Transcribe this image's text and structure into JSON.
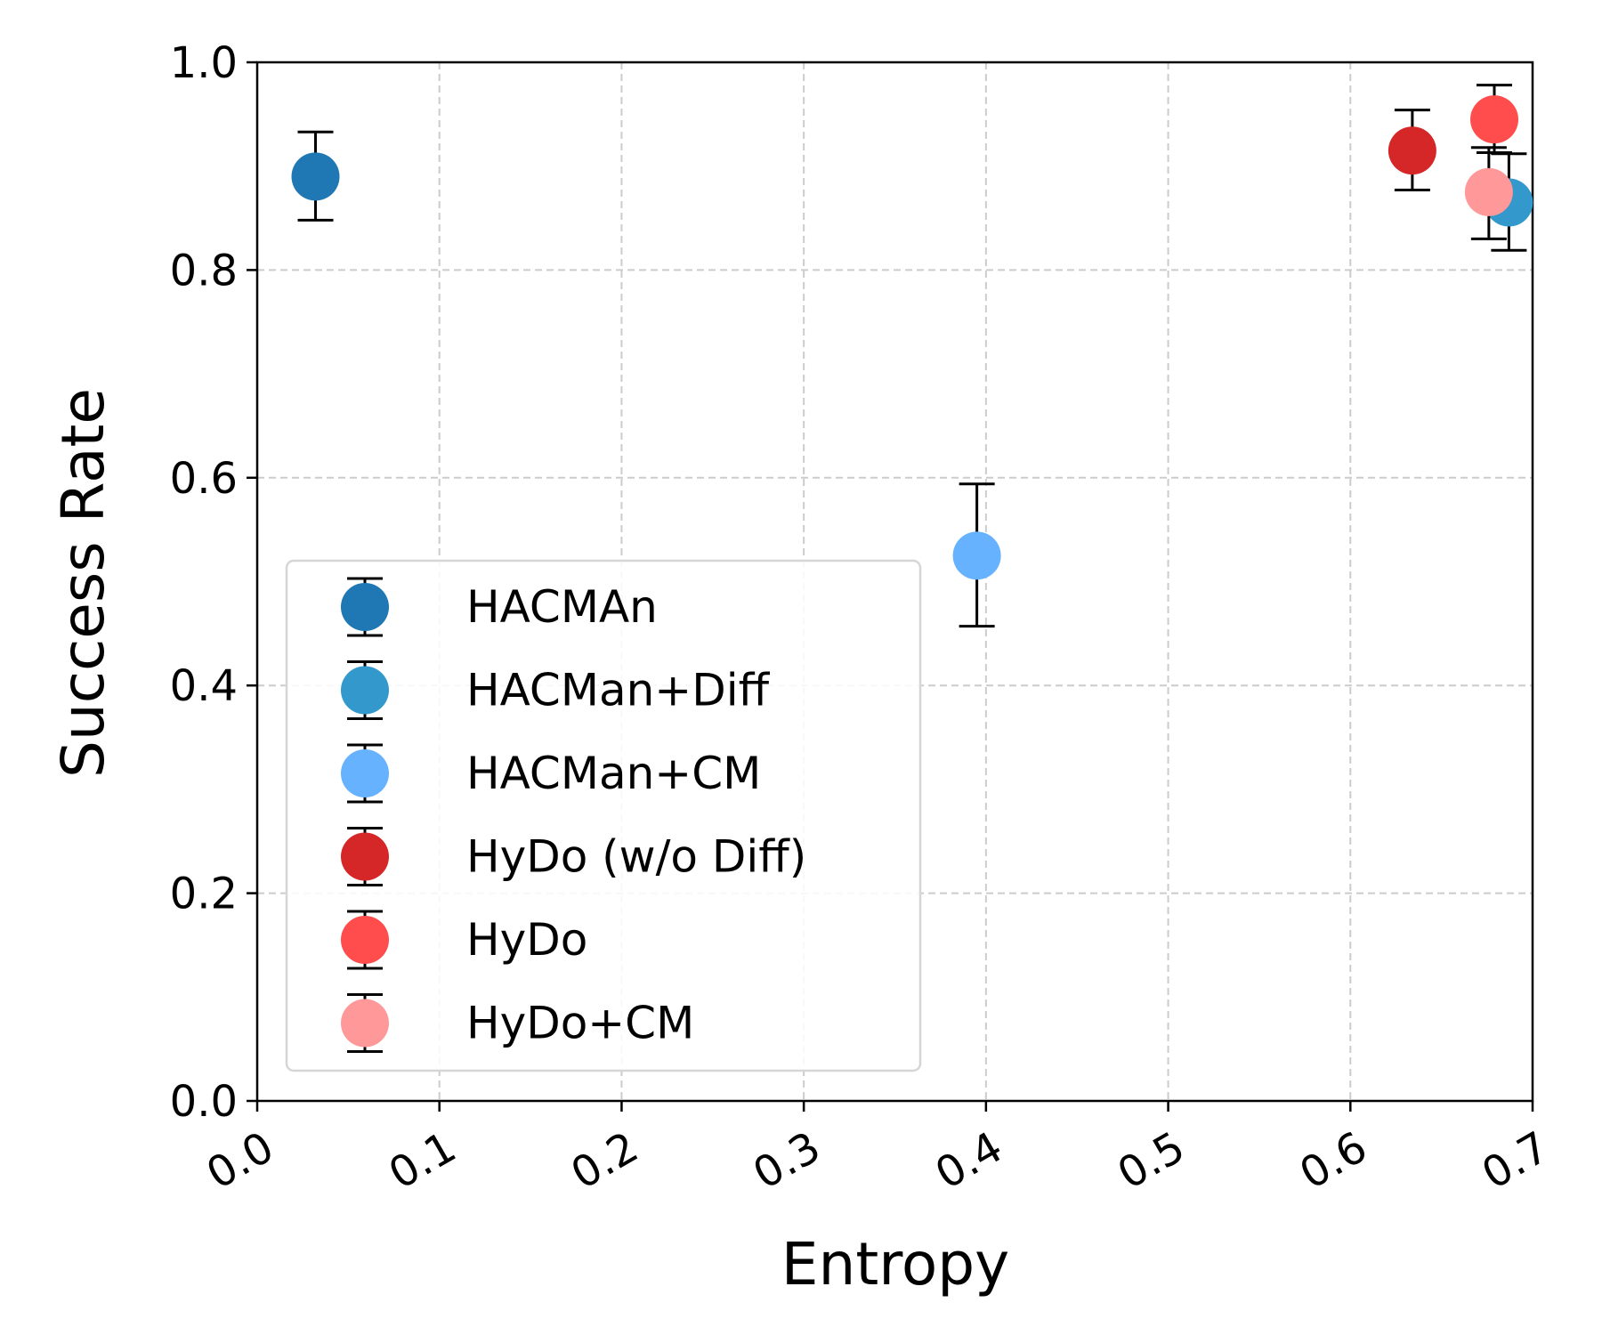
{
  "chart_data": {
    "type": "scatter",
    "title": "",
    "xlabel": "Entropy",
    "ylabel": "Success Rate",
    "xlim": [
      0.0,
      0.7
    ],
    "ylim": [
      0.0,
      1.0
    ],
    "xticks": [
      "0.0",
      "0.1",
      "0.2",
      "0.3",
      "0.4",
      "0.5",
      "0.6",
      "0.7"
    ],
    "yticks": [
      "0.0",
      "0.2",
      "0.4",
      "0.6",
      "0.8",
      "1.0"
    ],
    "grid": true,
    "legend_position": "center-left",
    "series": [
      {
        "name": "HACMAn",
        "color": "#1f77b4",
        "x": 0.032,
        "y": 0.89,
        "yerr": [
          0.848,
          0.933
        ]
      },
      {
        "name": "HACMan+Diff",
        "color": "#3399cc",
        "x": 0.687,
        "y": 0.865,
        "yerr": [
          0.819,
          0.912
        ]
      },
      {
        "name": "HACMan+CM",
        "color": "#66b2ff",
        "x": 0.395,
        "y": 0.525,
        "yerr": [
          0.457,
          0.594
        ]
      },
      {
        "name": "HyDo (w/o Diff)",
        "color": "#d62728",
        "x": 0.634,
        "y": 0.915,
        "yerr": [
          0.877,
          0.954
        ]
      },
      {
        "name": "HyDo",
        "color": "#ff4d4d",
        "x": 0.679,
        "y": 0.945,
        "yerr": [
          0.913,
          0.978
        ]
      },
      {
        "name": "HyDo+CM",
        "color": "#ff9999",
        "x": 0.676,
        "y": 0.875,
        "yerr": [
          0.83,
          0.918
        ]
      }
    ]
  }
}
